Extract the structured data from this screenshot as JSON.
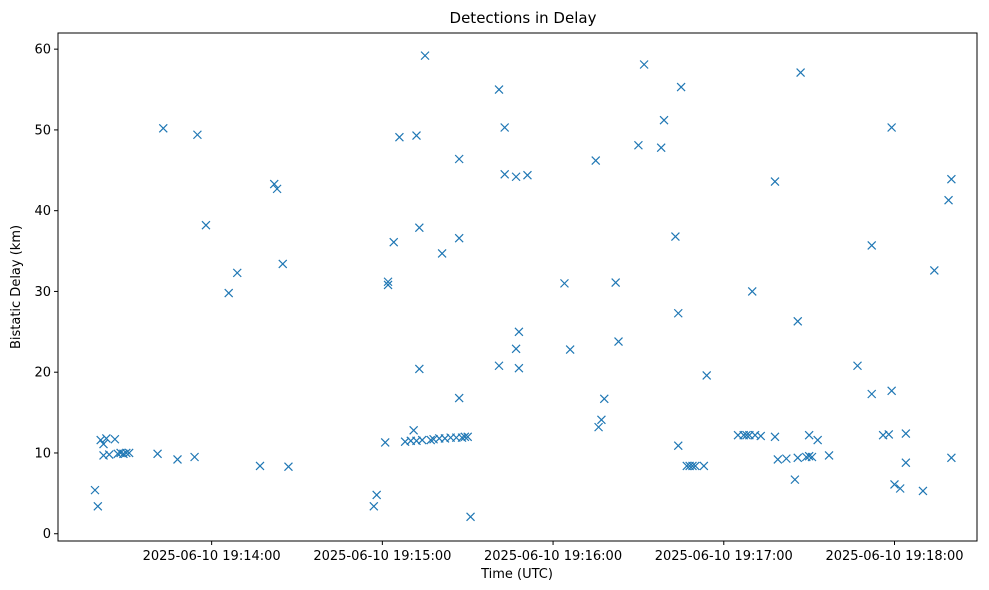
{
  "chart_data": {
    "type": "scatter",
    "title": "Detections in Delay",
    "xlabel": "Time (UTC)",
    "ylabel": "Bistatic Delay (km)",
    "marker": "x",
    "color": "#1f77b4",
    "grid": false,
    "legend": "none",
    "date": "2025-06-10",
    "xlim": [
      "19:13:06",
      "19:18:29"
    ],
    "ylim": [
      -0.9,
      62
    ],
    "x_ticks": [
      "2025-06-10 19:14:00",
      "2025-06-10 19:15:00",
      "2025-06-10 19:16:00",
      "2025-06-10 19:17:00",
      "2025-06-10 19:18:00"
    ],
    "y_ticks": [
      0,
      10,
      20,
      30,
      40,
      50,
      60
    ],
    "points": [
      {
        "t": "19:13:19",
        "y": 5.4
      },
      {
        "t": "19:13:20",
        "y": 3.4
      },
      {
        "t": "19:13:21",
        "y": 11.6
      },
      {
        "t": "19:13:22",
        "y": 11.1
      },
      {
        "t": "19:13:22",
        "y": 9.7
      },
      {
        "t": "19:13:23",
        "y": 11.8
      },
      {
        "t": "19:13:24",
        "y": 9.8
      },
      {
        "t": "19:13:26",
        "y": 11.7
      },
      {
        "t": "19:13:27",
        "y": 9.9
      },
      {
        "t": "19:13:28",
        "y": 10.0
      },
      {
        "t": "19:13:29",
        "y": 9.9
      },
      {
        "t": "19:13:30",
        "y": 10.0
      },
      {
        "t": "19:13:31",
        "y": 10.0
      },
      {
        "t": "19:13:41",
        "y": 9.9
      },
      {
        "t": "19:13:43",
        "y": 50.2
      },
      {
        "t": "19:13:48",
        "y": 9.2
      },
      {
        "t": "19:13:55",
        "y": 49.4
      },
      {
        "t": "19:13:54",
        "y": 9.5
      },
      {
        "t": "19:13:58",
        "y": 38.2
      },
      {
        "t": "19:14:06",
        "y": 29.8
      },
      {
        "t": "19:14:09",
        "y": 32.3
      },
      {
        "t": "19:14:17",
        "y": 8.4
      },
      {
        "t": "19:14:22",
        "y": 43.3
      },
      {
        "t": "19:14:23",
        "y": 42.7
      },
      {
        "t": "19:14:25",
        "y": 33.4
      },
      {
        "t": "19:14:27",
        "y": 8.3
      },
      {
        "t": "19:14:57",
        "y": 3.4
      },
      {
        "t": "19:14:58",
        "y": 4.8
      },
      {
        "t": "19:15:01",
        "y": 11.3
      },
      {
        "t": "19:15:02",
        "y": 31.2
      },
      {
        "t": "19:15:02",
        "y": 30.8
      },
      {
        "t": "19:15:04",
        "y": 36.1
      },
      {
        "t": "19:15:06",
        "y": 49.1
      },
      {
        "t": "19:15:08",
        "y": 11.4
      },
      {
        "t": "19:15:10",
        "y": 11.5
      },
      {
        "t": "19:15:11",
        "y": 12.8
      },
      {
        "t": "19:15:12",
        "y": 49.3
      },
      {
        "t": "19:15:12",
        "y": 11.5
      },
      {
        "t": "19:15:13",
        "y": 37.9
      },
      {
        "t": "19:15:13",
        "y": 20.4
      },
      {
        "t": "19:15:14",
        "y": 11.6
      },
      {
        "t": "19:15:15",
        "y": 59.2
      },
      {
        "t": "19:15:17",
        "y": 11.6
      },
      {
        "t": "19:15:18",
        "y": 11.7
      },
      {
        "t": "19:15:20",
        "y": 11.8
      },
      {
        "t": "19:15:21",
        "y": 34.7
      },
      {
        "t": "19:15:22",
        "y": 11.8
      },
      {
        "t": "19:15:24",
        "y": 11.9
      },
      {
        "t": "19:15:26",
        "y": 11.9
      },
      {
        "t": "19:15:27",
        "y": 46.4
      },
      {
        "t": "19:15:27",
        "y": 36.6
      },
      {
        "t": "19:15:27",
        "y": 16.8
      },
      {
        "t": "19:15:28",
        "y": 11.9
      },
      {
        "t": "19:15:29",
        "y": 12.0
      },
      {
        "t": "19:15:30",
        "y": 12.0
      },
      {
        "t": "19:15:31",
        "y": 2.1
      },
      {
        "t": "19:15:41",
        "y": 55.0
      },
      {
        "t": "19:15:41",
        "y": 20.8
      },
      {
        "t": "19:15:43",
        "y": 50.3
      },
      {
        "t": "19:15:43",
        "y": 44.5
      },
      {
        "t": "19:15:47",
        "y": 44.2
      },
      {
        "t": "19:15:47",
        "y": 22.9
      },
      {
        "t": "19:15:48",
        "y": 25.0
      },
      {
        "t": "19:15:48",
        "y": 20.5
      },
      {
        "t": "19:15:51",
        "y": 44.4
      },
      {
        "t": "19:16:04",
        "y": 31.0
      },
      {
        "t": "19:16:06",
        "y": 22.8
      },
      {
        "t": "19:16:15",
        "y": 46.2
      },
      {
        "t": "19:16:16",
        "y": 13.2
      },
      {
        "t": "19:16:17",
        "y": 14.1
      },
      {
        "t": "19:16:18",
        "y": 16.7
      },
      {
        "t": "19:16:22",
        "y": 31.1
      },
      {
        "t": "19:16:23",
        "y": 23.8
      },
      {
        "t": "19:16:30",
        "y": 48.1
      },
      {
        "t": "19:16:32",
        "y": 58.1
      },
      {
        "t": "19:16:38",
        "y": 47.8
      },
      {
        "t": "19:16:39",
        "y": 51.2
      },
      {
        "t": "19:16:43",
        "y": 36.8
      },
      {
        "t": "19:16:44",
        "y": 27.3
      },
      {
        "t": "19:16:45",
        "y": 55.3
      },
      {
        "t": "19:16:44",
        "y": 10.9
      },
      {
        "t": "19:16:47",
        "y": 8.4
      },
      {
        "t": "19:16:48",
        "y": 8.4
      },
      {
        "t": "19:16:49",
        "y": 8.4
      },
      {
        "t": "19:16:50",
        "y": 8.4
      },
      {
        "t": "19:16:53",
        "y": 8.4
      },
      {
        "t": "19:16:54",
        "y": 19.6
      },
      {
        "t": "19:17:05",
        "y": 12.2
      },
      {
        "t": "19:17:07",
        "y": 12.2
      },
      {
        "t": "19:17:08",
        "y": 12.2
      },
      {
        "t": "19:17:09",
        "y": 12.2
      },
      {
        "t": "19:17:10",
        "y": 30.0
      },
      {
        "t": "19:17:11",
        "y": 12.2
      },
      {
        "t": "19:17:13",
        "y": 12.1
      },
      {
        "t": "19:17:18",
        "y": 43.6
      },
      {
        "t": "19:17:18",
        "y": 12.0
      },
      {
        "t": "19:17:19",
        "y": 9.2
      },
      {
        "t": "19:17:22",
        "y": 9.3
      },
      {
        "t": "19:17:25",
        "y": 6.7
      },
      {
        "t": "19:17:26",
        "y": 26.3
      },
      {
        "t": "19:17:27",
        "y": 57.1
      },
      {
        "t": "19:17:26",
        "y": 9.4
      },
      {
        "t": "19:17:29",
        "y": 9.5
      },
      {
        "t": "19:17:30",
        "y": 9.6
      },
      {
        "t": "19:17:30",
        "y": 12.2
      },
      {
        "t": "19:17:31",
        "y": 9.5
      },
      {
        "t": "19:17:33",
        "y": 11.6
      },
      {
        "t": "19:17:37",
        "y": 9.7
      },
      {
        "t": "19:17:47",
        "y": 20.8
      },
      {
        "t": "19:17:52",
        "y": 35.7
      },
      {
        "t": "19:17:52",
        "y": 17.3
      },
      {
        "t": "19:17:56",
        "y": 12.2
      },
      {
        "t": "19:17:58",
        "y": 12.3
      },
      {
        "t": "19:17:59",
        "y": 50.3
      },
      {
        "t": "19:17:59",
        "y": 17.7
      },
      {
        "t": "19:18:00",
        "y": 6.1
      },
      {
        "t": "19:18:02",
        "y": 5.6
      },
      {
        "t": "19:18:04",
        "y": 12.4
      },
      {
        "t": "19:18:04",
        "y": 8.8
      },
      {
        "t": "19:18:10",
        "y": 5.3
      },
      {
        "t": "19:18:14",
        "y": 32.6
      },
      {
        "t": "19:18:19",
        "y": 41.3
      },
      {
        "t": "19:18:20",
        "y": 43.9
      },
      {
        "t": "19:18:20",
        "y": 9.4
      }
    ]
  }
}
